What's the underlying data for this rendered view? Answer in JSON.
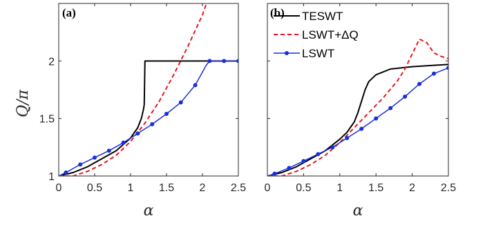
{
  "figure": {
    "ylabel_main": "Q",
    "ylabel_over": "/π",
    "xlabel": "α"
  },
  "chart_data": [
    {
      "type": "line",
      "panel_label": "(a)",
      "xlim": [
        0,
        2.5
      ],
      "ylim": [
        1,
        2.5
      ],
      "xticks": [
        0,
        0.5,
        1,
        1.5,
        2,
        2.5
      ],
      "yticks": [
        1,
        1.5,
        2
      ],
      "xtick_labels": [
        "0",
        "0.5",
        "1",
        "1.5",
        "2",
        "2.5"
      ],
      "ytick_labels": [
        "1",
        "1.5",
        "2"
      ],
      "xlabel": "α",
      "ylabel": "Q/π",
      "grid": false,
      "series": [
        {
          "key": "teswt",
          "color": "#000000",
          "style": "solid",
          "marker": false,
          "x": [
            0,
            0.2,
            0.4,
            0.6,
            0.8,
            1.0,
            1.1,
            1.15,
            1.18,
            1.19,
            1.2,
            1.3,
            1.6,
            2.0,
            2.5
          ],
          "y": [
            1,
            1.03,
            1.08,
            1.15,
            1.22,
            1.33,
            1.42,
            1.5,
            1.58,
            1.62,
            2.0,
            2.0,
            2.0,
            2.0,
            2.0
          ]
        },
        {
          "key": "lswt_dq",
          "color": "#e8141c",
          "style": "dashed",
          "marker": false,
          "x": [
            0,
            0.2,
            0.4,
            0.6,
            0.8,
            1.0,
            1.2,
            1.4,
            1.6,
            1.8,
            2.0,
            2.1,
            2.2
          ],
          "y": [
            1,
            1.0,
            1.04,
            1.1,
            1.18,
            1.3,
            1.46,
            1.65,
            1.88,
            2.13,
            2.4,
            2.58,
            2.9
          ]
        },
        {
          "key": "lswt",
          "color": "#1a2edb",
          "style": "solid",
          "marker": true,
          "x": [
            0,
            0.1,
            0.3,
            0.5,
            0.7,
            0.9,
            1.1,
            1.3,
            1.5,
            1.7,
            1.9,
            2.05,
            2.1,
            2.3,
            2.5
          ],
          "y": [
            1,
            1.03,
            1.1,
            1.16,
            1.22,
            1.29,
            1.37,
            1.45,
            1.54,
            1.64,
            1.79,
            1.96,
            2.0,
            2.0,
            2.0
          ],
          "marker_x": [
            0.1,
            0.3,
            0.5,
            0.7,
            0.9,
            1.1,
            1.3,
            1.5,
            1.7,
            1.9,
            2.1,
            2.3,
            2.5
          ],
          "marker_y": [
            1.03,
            1.1,
            1.16,
            1.22,
            1.29,
            1.37,
            1.45,
            1.54,
            1.64,
            1.79,
            2.0,
            2.0,
            2.0
          ]
        }
      ]
    },
    {
      "type": "line",
      "panel_label": "(b)",
      "xlim": [
        0,
        2.5
      ],
      "ylim": [
        1,
        2.5
      ],
      "xticks": [
        0,
        0.5,
        1,
        1.5,
        2,
        2.5
      ],
      "xtick_labels": [
        "0",
        "0.5",
        "1",
        "1.5",
        "2",
        "2.5"
      ],
      "xlabel": "α",
      "grid": false,
      "legend_position": "top-left",
      "series": [
        {
          "key": "teswt",
          "name": "TESWT",
          "color": "#000000",
          "style": "solid",
          "marker": false,
          "x": [
            0,
            0.2,
            0.4,
            0.6,
            0.8,
            1.0,
            1.1,
            1.2,
            1.25,
            1.3,
            1.35,
            1.4,
            1.5,
            1.7,
            2.0,
            2.5
          ],
          "y": [
            1,
            1.03,
            1.08,
            1.15,
            1.22,
            1.32,
            1.38,
            1.47,
            1.55,
            1.65,
            1.75,
            1.82,
            1.88,
            1.93,
            1.95,
            1.97
          ]
        },
        {
          "key": "lswt_dq",
          "name": "LSWT+ΔQ",
          "color": "#e8141c",
          "style": "dashed",
          "marker": false,
          "x": [
            0,
            0.2,
            0.4,
            0.6,
            0.8,
            1.0,
            1.2,
            1.4,
            1.6,
            1.8,
            1.9,
            2.0,
            2.1,
            2.2,
            2.3,
            2.4,
            2.5
          ],
          "y": [
            1,
            1.0,
            1.04,
            1.1,
            1.18,
            1.29,
            1.42,
            1.55,
            1.68,
            1.83,
            1.93,
            2.06,
            2.19,
            2.16,
            2.07,
            2.04,
            2.02
          ]
        },
        {
          "key": "lswt",
          "name": "LSWT",
          "color": "#1a2edb",
          "style": "solid",
          "marker": true,
          "x": [
            0,
            0.1,
            0.3,
            0.5,
            0.7,
            0.9,
            1.1,
            1.3,
            1.5,
            1.7,
            1.9,
            2.1,
            2.3,
            2.5
          ],
          "y": [
            1,
            1.02,
            1.07,
            1.13,
            1.19,
            1.25,
            1.33,
            1.41,
            1.5,
            1.59,
            1.69,
            1.8,
            1.89,
            1.94
          ],
          "marker_x": [
            0.1,
            0.3,
            0.5,
            0.7,
            0.9,
            1.1,
            1.3,
            1.5,
            1.7,
            1.9,
            2.1,
            2.3,
            2.5
          ],
          "marker_y": [
            1.02,
            1.07,
            1.13,
            1.19,
            1.25,
            1.33,
            1.41,
            1.5,
            1.59,
            1.69,
            1.8,
            1.89,
            1.94
          ]
        }
      ]
    }
  ]
}
